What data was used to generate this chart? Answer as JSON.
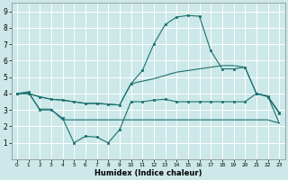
{
  "xlabel": "Humidex (Indice chaleur)",
  "background_color": "#cce8e8",
  "grid_color": "#ffffff",
  "line_color": "#1a7070",
  "xlim": [
    -0.5,
    23.5
  ],
  "ylim": [
    0,
    9.5
  ],
  "xticks": [
    0,
    1,
    2,
    3,
    4,
    5,
    6,
    7,
    8,
    9,
    10,
    11,
    12,
    13,
    14,
    15,
    16,
    17,
    18,
    19,
    20,
    21,
    22,
    23
  ],
  "yticks": [
    1,
    2,
    3,
    4,
    5,
    6,
    7,
    8,
    9
  ],
  "line1_x": [
    0,
    1,
    2,
    3,
    4,
    5,
    6,
    7,
    8,
    9,
    10,
    11,
    12,
    13,
    14,
    15,
    16,
    17,
    18,
    19,
    20,
    21,
    22,
    23
  ],
  "line1_y": [
    4.0,
    4.1,
    3.0,
    3.0,
    2.5,
    1.0,
    1.4,
    1.35,
    1.0,
    1.8,
    3.5,
    3.5,
    3.6,
    3.65,
    3.5,
    3.5,
    3.5,
    3.5,
    3.5,
    3.5,
    3.5,
    4.0,
    3.8,
    2.8
  ],
  "line2_x": [
    0,
    1,
    2,
    3,
    4,
    5,
    6,
    7,
    8,
    9,
    10,
    11,
    12,
    13,
    14,
    15,
    16,
    17,
    18,
    19,
    20,
    21,
    22,
    23
  ],
  "line2_y": [
    4.0,
    4.05,
    3.05,
    3.05,
    2.4,
    2.4,
    2.4,
    2.4,
    2.4,
    2.4,
    2.4,
    2.4,
    2.4,
    2.4,
    2.4,
    2.4,
    2.4,
    2.4,
    2.4,
    2.4,
    2.4,
    2.4,
    2.4,
    2.2
  ],
  "line3_x": [
    0,
    1,
    2,
    3,
    4,
    5,
    6,
    7,
    8,
    9,
    10,
    11,
    12,
    13,
    14,
    15,
    16,
    17,
    18,
    19,
    20,
    21,
    22,
    23
  ],
  "line3_y": [
    4.0,
    4.0,
    3.8,
    3.65,
    3.6,
    3.5,
    3.4,
    3.4,
    3.35,
    3.3,
    4.6,
    5.4,
    7.0,
    8.2,
    8.65,
    8.75,
    8.7,
    6.6,
    5.5,
    5.5,
    5.6,
    4.0,
    3.85,
    2.85
  ],
  "line4_x": [
    0,
    1,
    2,
    3,
    4,
    5,
    6,
    7,
    8,
    9,
    10,
    11,
    12,
    13,
    14,
    15,
    16,
    17,
    18,
    19,
    20,
    21,
    22,
    23
  ],
  "line4_y": [
    4.0,
    4.0,
    3.8,
    3.65,
    3.6,
    3.5,
    3.4,
    3.4,
    3.35,
    3.3,
    4.6,
    4.75,
    4.9,
    5.1,
    5.3,
    5.4,
    5.5,
    5.6,
    5.7,
    5.7,
    5.6,
    4.0,
    3.85,
    2.2
  ]
}
